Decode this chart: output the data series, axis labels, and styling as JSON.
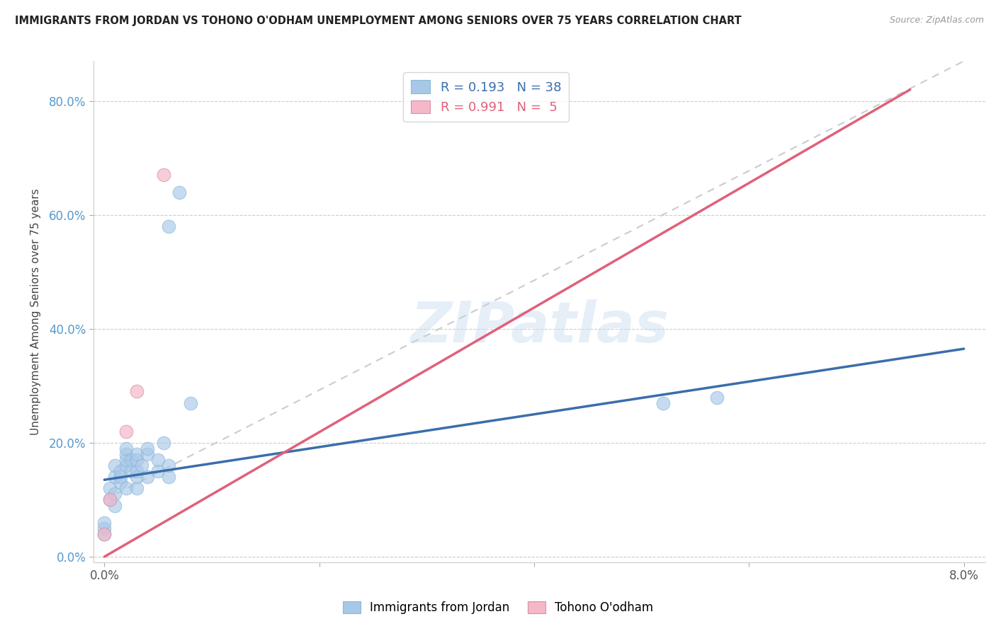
{
  "title": "IMMIGRANTS FROM JORDAN VS TOHONO O'ODHAM UNEMPLOYMENT AMONG SENIORS OVER 75 YEARS CORRELATION CHART",
  "source": "Source: ZipAtlas.com",
  "xlabel": "",
  "ylabel": "Unemployment Among Seniors over 75 years",
  "xlim": [
    -0.001,
    0.082
  ],
  "ylim": [
    -0.01,
    0.87
  ],
  "yticks": [
    0.0,
    0.2,
    0.4,
    0.6,
    0.8
  ],
  "ytick_labels": [
    "0.0%",
    "20.0%",
    "40.0%",
    "60.0%",
    "80.0%"
  ],
  "xticks": [
    0.0,
    0.02,
    0.04,
    0.06,
    0.08
  ],
  "xtick_labels": [
    "0.0%",
    "",
    "",
    "",
    "8.0%"
  ],
  "jordan_color": "#a8c8e8",
  "tohono_color": "#f4b8c8",
  "jordan_line_color": "#3a6eab",
  "tohono_line_color": "#e0607a",
  "legend_jordan_R": "0.193",
  "legend_jordan_N": "38",
  "legend_tohono_R": "0.991",
  "legend_tohono_N": "5",
  "watermark": "ZIPatlas",
  "jordan_points_x": [
    0.0,
    0.0,
    0.0,
    0.0005,
    0.0005,
    0.001,
    0.001,
    0.001,
    0.001,
    0.0015,
    0.0015,
    0.0015,
    0.002,
    0.002,
    0.002,
    0.002,
    0.002,
    0.0025,
    0.0025,
    0.003,
    0.003,
    0.003,
    0.003,
    0.003,
    0.0035,
    0.004,
    0.004,
    0.004,
    0.005,
    0.005,
    0.0055,
    0.006,
    0.006,
    0.006,
    0.007,
    0.008,
    0.052,
    0.057
  ],
  "jordan_points_y": [
    0.04,
    0.05,
    0.06,
    0.1,
    0.12,
    0.09,
    0.11,
    0.14,
    0.16,
    0.13,
    0.14,
    0.15,
    0.12,
    0.16,
    0.17,
    0.18,
    0.19,
    0.15,
    0.17,
    0.12,
    0.14,
    0.15,
    0.17,
    0.18,
    0.16,
    0.14,
    0.18,
    0.19,
    0.15,
    0.17,
    0.2,
    0.14,
    0.16,
    0.58,
    0.64,
    0.27,
    0.27,
    0.28
  ],
  "tohono_points_x": [
    0.0,
    0.0005,
    0.002,
    0.003,
    0.0055
  ],
  "tohono_points_y": [
    0.04,
    0.1,
    0.22,
    0.29,
    0.67
  ],
  "jordan_trend_x": [
    0.0,
    0.08
  ],
  "jordan_trend_y": [
    0.135,
    0.365
  ],
  "tohono_trend_x": [
    0.0,
    0.075
  ],
  "tohono_trend_y": [
    0.0,
    0.82
  ],
  "dashed_trend_x": [
    0.0,
    0.08
  ],
  "dashed_trend_y": [
    0.1,
    0.87
  ]
}
